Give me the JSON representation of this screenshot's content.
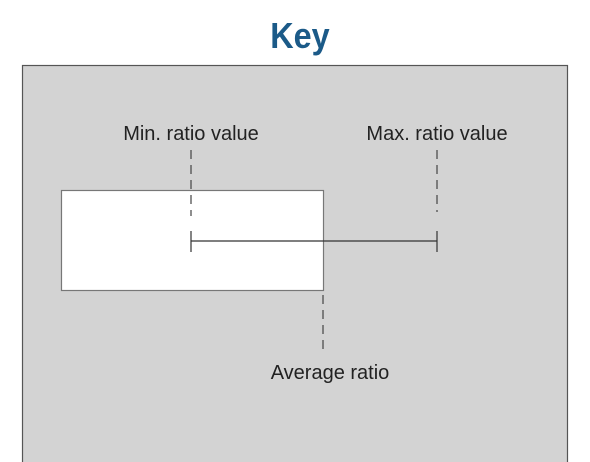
{
  "title": "Key",
  "labels": {
    "min": "Min. ratio value",
    "max": "Max. ratio value",
    "average": "Average ratio"
  }
}
